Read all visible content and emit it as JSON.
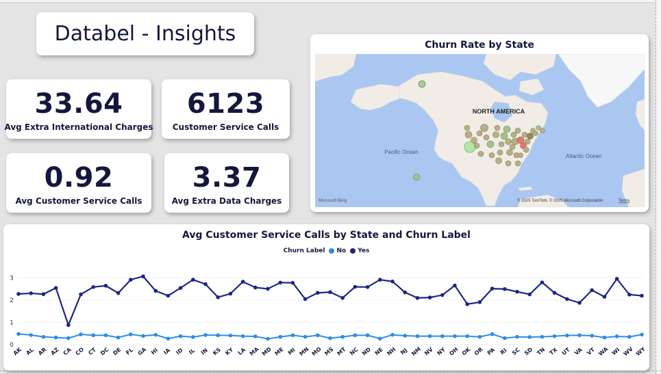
{
  "title": "Databel - Insights",
  "kpis": [
    {
      "value": "33.64",
      "label": "Avg Extra International Charges"
    },
    {
      "value": "6123",
      "label": "Customer Service Calls"
    },
    {
      "value": "0.92",
      "label": "Avg Customer Service Calls"
    },
    {
      "value": "3.37",
      "label": "Avg Extra Data Charges"
    }
  ],
  "map": {
    "title": "Churn Rate by State",
    "labels": {
      "continent": "NORTH AMERICA",
      "pacific": "Pacific Ocean",
      "atlantic": "Atlantic Ocean"
    },
    "bing": "Microsoft Bing",
    "copyright": "© 2025 TomTom, © 2025 Microsoft Corporation",
    "terms": "Terms",
    "colors": {
      "water": "#a9c7f1",
      "land": "#f1ede6",
      "ice": "#f7f7f7",
      "low": "#a4c28c",
      "mid": "#b6b083",
      "high": "#e07a72"
    }
  },
  "chart_data": {
    "type": "line",
    "title": "Avg Customer Service Calls by State and Churn Label",
    "legend_title": "Churn Label",
    "legend_position": "top",
    "categories": [
      "AK",
      "AL",
      "AR",
      "AZ",
      "CA",
      "CO",
      "CT",
      "DC",
      "DE",
      "FL",
      "GA",
      "HI",
      "IA",
      "ID",
      "IL",
      "IN",
      "KS",
      "KY",
      "LA",
      "MA",
      "MD",
      "ME",
      "MI",
      "MN",
      "MO",
      "MS",
      "MT",
      "NC",
      "ND",
      "NE",
      "NH",
      "NJ",
      "NM",
      "NV",
      "NY",
      "OH",
      "OK",
      "OR",
      "PA",
      "RI",
      "SC",
      "SD",
      "TN",
      "TX",
      "UT",
      "VA",
      "VT",
      "WA",
      "WI",
      "WV",
      "WY"
    ],
    "series": [
      {
        "name": "No",
        "color": "#2b8ce8",
        "values": [
          0.48,
          0.43,
          0.35,
          0.32,
          0.29,
          0.46,
          0.42,
          0.42,
          0.32,
          0.46,
          0.39,
          0.44,
          0.27,
          0.38,
          0.34,
          0.43,
          0.42,
          0.41,
          0.38,
          0.37,
          0.26,
          0.35,
          0.42,
          0.35,
          0.42,
          0.29,
          0.35,
          0.42,
          0.42,
          0.27,
          0.44,
          0.4,
          0.38,
          0.38,
          0.38,
          0.38,
          0.38,
          0.35,
          0.47,
          0.29,
          0.35,
          0.34,
          0.35,
          0.38,
          0.41,
          0.42,
          0.4,
          0.32,
          0.37,
          0.35,
          0.45
        ]
      },
      {
        "name": "Yes",
        "color": "#1b2589",
        "values": [
          2.28,
          2.31,
          2.27,
          2.55,
          0.88,
          2.26,
          2.59,
          2.65,
          2.32,
          2.92,
          3.07,
          2.42,
          2.2,
          2.55,
          2.92,
          2.72,
          2.13,
          2.29,
          2.83,
          2.57,
          2.51,
          2.79,
          2.78,
          2.05,
          2.33,
          2.36,
          2.1,
          2.6,
          2.59,
          2.92,
          2.84,
          2.35,
          2.1,
          2.12,
          2.23,
          2.66,
          1.82,
          1.91,
          2.52,
          2.5,
          2.38,
          2.26,
          2.8,
          2.33,
          2.05,
          1.88,
          2.45,
          2.15,
          2.96,
          2.25,
          2.2
        ]
      }
    ],
    "y_ticks": [
      "0",
      "1",
      "2",
      "3"
    ],
    "ylim": [
      0,
      3.2
    ],
    "grid": true
  }
}
